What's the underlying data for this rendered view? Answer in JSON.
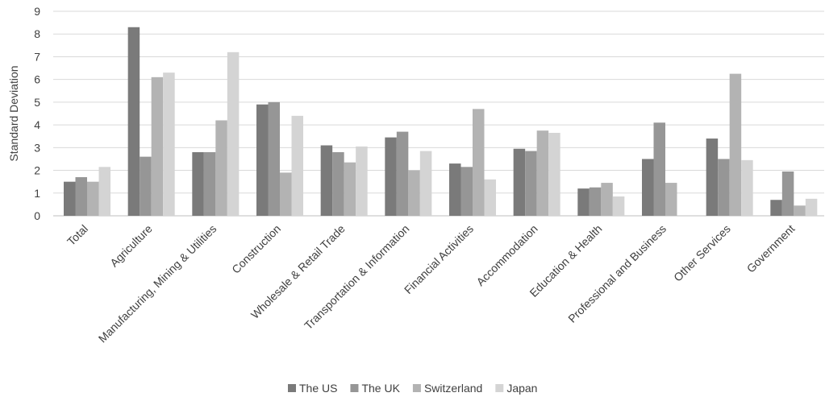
{
  "chart_data": {
    "type": "bar",
    "title": "",
    "xlabel": "",
    "ylabel": "Standard Deviation",
    "ylim": [
      0,
      9
    ],
    "yticks": [
      0,
      1,
      2,
      3,
      4,
      5,
      6,
      7,
      8,
      9
    ],
    "grid": true,
    "legend_position": "bottom",
    "categories": [
      "Total",
      "Agriculture",
      "Manufacturing, Mining & Utilities",
      "Construction",
      "Wholesale & Retail Trade",
      "Transportation & Information",
      "Financial Activities",
      "Accommodation",
      "Education & Health",
      "Professional and Business",
      "Other Services",
      "Government"
    ],
    "series": [
      {
        "name": "The US",
        "color": "#7a7a7a",
        "values": [
          1.5,
          8.3,
          2.8,
          4.9,
          3.1,
          3.45,
          2.3,
          2.95,
          1.2,
          2.5,
          3.4,
          0.7
        ]
      },
      {
        "name": "The UK",
        "color": "#969696",
        "values": [
          1.7,
          2.6,
          2.8,
          5.0,
          2.8,
          3.7,
          2.15,
          2.85,
          1.25,
          4.1,
          2.5,
          1.95
        ]
      },
      {
        "name": "Switzerland",
        "color": "#b3b3b3",
        "values": [
          1.5,
          6.1,
          4.2,
          1.9,
          2.35,
          2.0,
          4.7,
          3.75,
          1.45,
          1.45,
          6.25,
          0.45
        ]
      },
      {
        "name": "Japan",
        "color": "#d4d4d4",
        "values": [
          2.15,
          6.3,
          7.2,
          4.4,
          3.05,
          2.85,
          1.6,
          3.65,
          0.85,
          0.0,
          2.45,
          0.75
        ]
      }
    ]
  }
}
